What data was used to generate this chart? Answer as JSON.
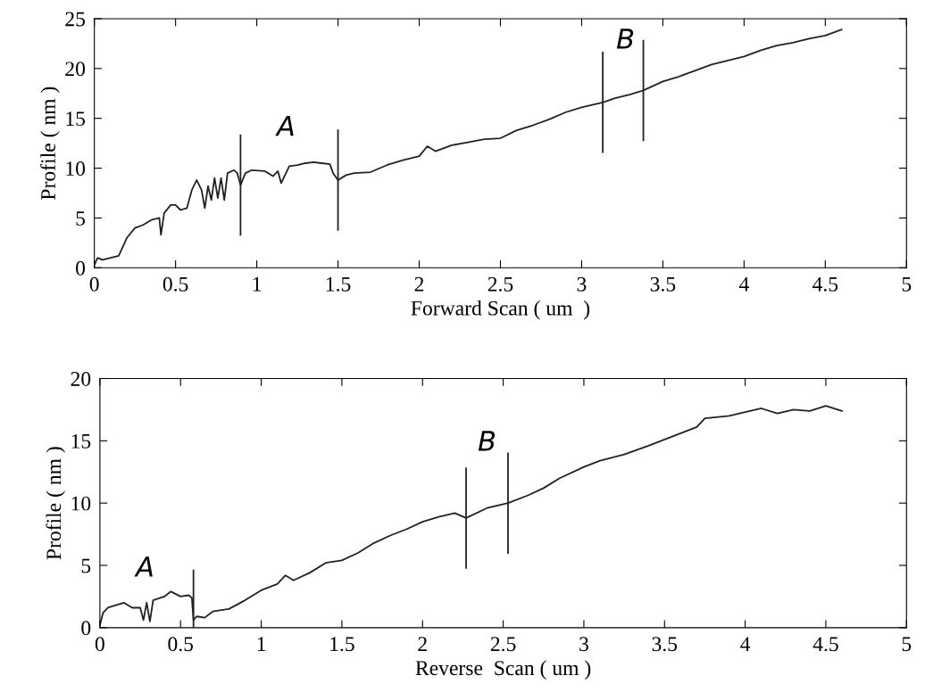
{
  "chart_data": [
    {
      "type": "line",
      "xlabel": "Forward Scan ( um  )",
      "ylabel": "Profile ( nm )",
      "xlim": [
        0,
        5
      ],
      "ylim": [
        0,
        25
      ],
      "xticks": [
        0,
        0.5,
        1,
        1.5,
        2,
        2.5,
        3,
        3.5,
        4,
        4.5,
        5
      ],
      "yticks": [
        0,
        5,
        10,
        15,
        20,
        25
      ],
      "grid": false,
      "legend": false,
      "marker": "none",
      "line_style": "solid",
      "series": [
        {
          "color": "#222222",
          "x": [
            0,
            0.02,
            0.05,
            0.1,
            0.15,
            0.2,
            0.25,
            0.3,
            0.35,
            0.4,
            0.41,
            0.43,
            0.47,
            0.5,
            0.53,
            0.57,
            0.6,
            0.63,
            0.66,
            0.68,
            0.7,
            0.72,
            0.74,
            0.76,
            0.78,
            0.8,
            0.82,
            0.86,
            0.88,
            0.9,
            0.93,
            0.97,
            1.05,
            1.1,
            1.13,
            1.15,
            1.2,
            1.25,
            1.3,
            1.35,
            1.4,
            1.45,
            1.47,
            1.5,
            1.55,
            1.6,
            1.7,
            1.8,
            1.9,
            2.0,
            2.05,
            2.1,
            2.2,
            2.3,
            2.4,
            2.5,
            2.6,
            2.7,
            2.8,
            2.9,
            3.0,
            3.13,
            3.2,
            3.3,
            3.38,
            3.5,
            3.6,
            3.7,
            3.8,
            3.9,
            4.0,
            4.1,
            4.2,
            4.3,
            4.4,
            4.5,
            4.6
          ],
          "values": [
            0.3,
            1,
            0.8,
            1,
            1.2,
            3,
            4,
            4.3,
            4.8,
            5,
            3.3,
            5.5,
            6.3,
            6.3,
            5.8,
            6,
            7.8,
            8.8,
            7.8,
            6,
            8.2,
            6.8,
            9,
            7,
            9,
            6.8,
            9.5,
            9.8,
            9.5,
            8.3,
            9.5,
            9.8,
            9.7,
            9.2,
            9.7,
            8.5,
            10.2,
            10.3,
            10.5,
            10.6,
            10.5,
            10.4,
            9.5,
            8.8,
            9.3,
            9.5,
            9.6,
            10.3,
            10.8,
            11.2,
            12.2,
            11.7,
            12.3,
            12.6,
            12.9,
            13.0,
            13.8,
            14.3,
            14.9,
            15.6,
            16.1,
            16.6,
            17.0,
            17.4,
            17.8,
            18.7,
            19.2,
            19.8,
            20.4,
            20.8,
            21.2,
            21.8,
            22.3,
            22.6,
            23.0,
            23.3,
            23.9
          ]
        }
      ],
      "ref_lines": [
        {
          "axis": "x",
          "value": 0.9
        },
        {
          "axis": "x",
          "value": 1.5
        },
        {
          "axis": "x",
          "value": 3.13
        },
        {
          "axis": "x",
          "value": 3.38
        }
      ],
      "annotations": [
        "A",
        "B"
      ]
    },
    {
      "type": "line",
      "xlabel": "Reverse  Scan ( um )",
      "ylabel": "Profile ( nm )",
      "xlim": [
        0,
        5
      ],
      "ylim": [
        0,
        20
      ],
      "xticks": [
        0,
        0.5,
        1,
        1.5,
        2,
        2.5,
        3,
        3.5,
        4,
        4.5,
        5
      ],
      "yticks": [
        0,
        5,
        10,
        15,
        20
      ],
      "grid": false,
      "legend": false,
      "marker": "none",
      "line_style": "solid",
      "series": [
        {
          "color": "#222222",
          "x": [
            0,
            0.02,
            0.05,
            0.1,
            0.15,
            0.2,
            0.25,
            0.27,
            0.29,
            0.31,
            0.33,
            0.4,
            0.44,
            0.5,
            0.55,
            0.57,
            0.58,
            0.6,
            0.65,
            0.7,
            0.8,
            0.9,
            1.0,
            1.1,
            1.15,
            1.2,
            1.3,
            1.4,
            1.5,
            1.6,
            1.7,
            1.8,
            1.9,
            2.0,
            2.1,
            2.2,
            2.27,
            2.4,
            2.53,
            2.65,
            2.75,
            2.85,
            3.0,
            3.1,
            3.25,
            3.4,
            3.5,
            3.6,
            3.7,
            3.75,
            3.9,
            4.0,
            4.1,
            4.2,
            4.3,
            4.4,
            4.5,
            4.6
          ],
          "values": [
            0.2,
            1.2,
            1.6,
            1.8,
            2.0,
            1.6,
            1.6,
            0.6,
            2.0,
            0.5,
            2.2,
            2.5,
            2.9,
            2.5,
            2.6,
            2.4,
            0.6,
            0.9,
            0.8,
            1.3,
            1.5,
            2.2,
            3.0,
            3.5,
            4.2,
            3.8,
            4.4,
            5.2,
            5.4,
            6.0,
            6.8,
            7.4,
            7.9,
            8.5,
            8.9,
            9.2,
            8.8,
            9.6,
            10.0,
            10.6,
            11.2,
            12.0,
            12.9,
            13.4,
            13.9,
            14.6,
            15.1,
            15.6,
            16.1,
            16.8,
            17.0,
            17.3,
            17.6,
            17.2,
            17.5,
            17.4,
            17.8,
            17.4
          ]
        }
      ],
      "ref_lines": [
        {
          "axis": "x",
          "value": 0.58
        },
        {
          "axis": "x",
          "value": 2.27
        },
        {
          "axis": "x",
          "value": 2.53
        }
      ],
      "annotations": [
        "A",
        "B"
      ]
    }
  ]
}
